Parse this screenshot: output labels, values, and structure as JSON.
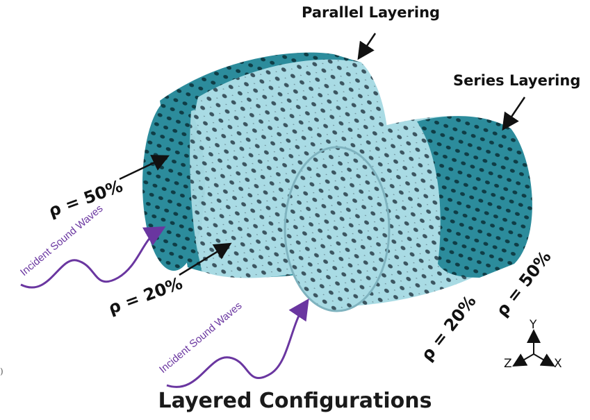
{
  "labels": {
    "parallel": "Parallel Layering",
    "series": "Series Layering",
    "rho_parallel_outer": "ρ = 50%",
    "rho_parallel_inner": "ρ = 20%",
    "rho_series_front": "ρ = 20%",
    "rho_series_back": "ρ = 50%",
    "incident_1": "Incident Sound Waves",
    "incident_2": "Incident Sound Waves",
    "caption": "Layered Configurations",
    "stray": ")"
  },
  "axes": {
    "y": "Y",
    "z": "Z",
    "x": "X"
  },
  "colors": {
    "dense_lattice": "#2c8c9c",
    "light_lattice": "#a9dbe4",
    "wave": "#6a36a0",
    "arrow": "#111111"
  }
}
